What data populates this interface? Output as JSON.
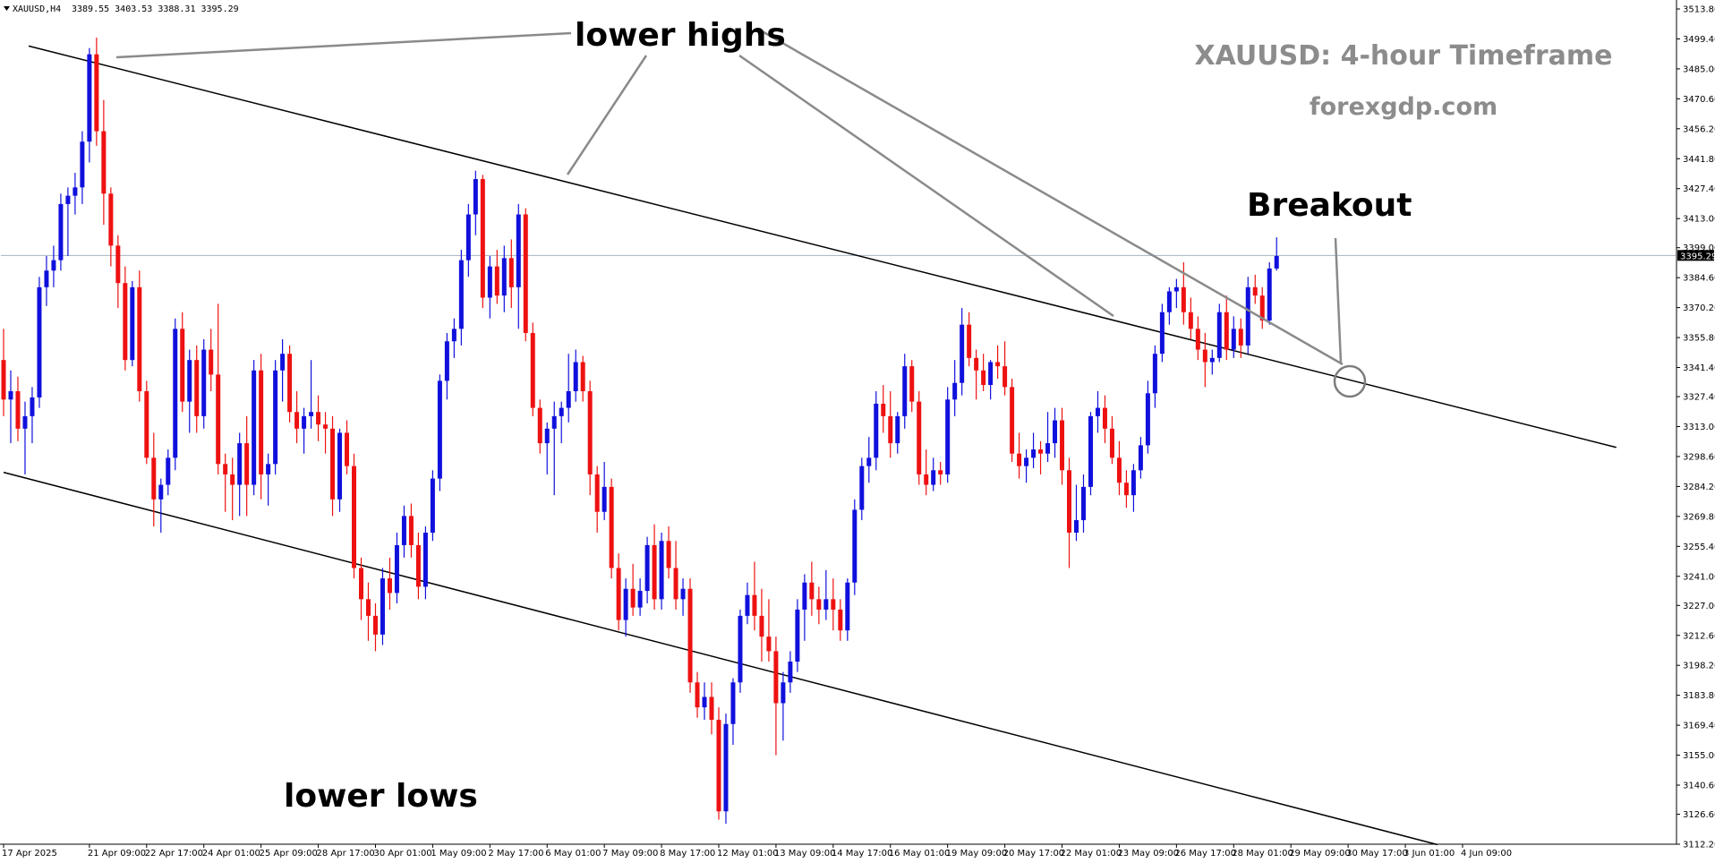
{
  "symbol_info": {
    "symbol": "XAUUSD,H4",
    "ohlc": "3389.55 3403.53 3388.31 3395.29"
  },
  "watermark": {
    "title": "XAUUSD: 4-hour Timeframe",
    "site": "forexgdp.com"
  },
  "annotations": {
    "lower_highs": "lower highs",
    "lower_lows": "lower lows",
    "breakout": "Breakout"
  },
  "colors": {
    "bull": "#1010dd",
    "bear": "#ee1111",
    "trendline": "#000000",
    "pointer": "#8a8a8a",
    "price_line": "#a6b3c2"
  },
  "chart_data": {
    "type": "candlestick",
    "title": "XAUUSD: 4-hour Timeframe",
    "symbol": "XAUUSD,H4",
    "timeframe": "H4",
    "current_price": 3395.29,
    "current_price_label": "3395.29",
    "ylim": [
      3112.2,
      3513.8
    ],
    "y_ticks": [
      "3513.80",
      "3499.40",
      "3485.00",
      "3470.60",
      "3456.20",
      "3441.80",
      "3427.40",
      "3413.00",
      "3399.00",
      "3384.60",
      "3370.20",
      "3355.80",
      "3341.40",
      "3327.40",
      "3313.00",
      "3298.60",
      "3284.20",
      "3269.80",
      "3255.40",
      "3241.00",
      "3227.00",
      "3212.60",
      "3198.20",
      "3183.80",
      "3169.40",
      "3155.00",
      "3140.60",
      "3126.60",
      "3112.20"
    ],
    "x_ticks": [
      {
        "label": "17 Apr 2025",
        "bar": 0
      },
      {
        "label": "21 Apr 09:00",
        "bar": 12
      },
      {
        "label": "22 Apr 17:00",
        "bar": 20
      },
      {
        "label": "24 Apr 01:00",
        "bar": 28
      },
      {
        "label": "25 Apr 09:00",
        "bar": 36
      },
      {
        "label": "28 Apr 17:00",
        "bar": 44
      },
      {
        "label": "30 Apr 01:00",
        "bar": 52
      },
      {
        "label": "1 May 09:00",
        "bar": 60
      },
      {
        "label": "2 May 17:00",
        "bar": 68
      },
      {
        "label": "6 May 01:00",
        "bar": 76
      },
      {
        "label": "7 May 09:00",
        "bar": 84
      },
      {
        "label": "8 May 17:00",
        "bar": 92
      },
      {
        "label": "12 May 01:00",
        "bar": 100
      },
      {
        "label": "13 May 09:00",
        "bar": 108
      },
      {
        "label": "14 May 17:00",
        "bar": 116
      },
      {
        "label": "16 May 01:00",
        "bar": 124
      },
      {
        "label": "19 May 09:00",
        "bar": 132
      },
      {
        "label": "20 May 17:00",
        "bar": 140
      },
      {
        "label": "22 May 01:00",
        "bar": 148
      },
      {
        "label": "23 May 09:00",
        "bar": 156
      },
      {
        "label": "26 May 17:00",
        "bar": 164
      },
      {
        "label": "28 May 01:00",
        "bar": 172
      },
      {
        "label": "29 May 09:00",
        "bar": 180
      },
      {
        "label": "30 May 17:00",
        "bar": 188
      },
      {
        "label": "3 Jun 01:00",
        "bar": 196
      },
      {
        "label": "4 Jun 09:00",
        "bar": 204
      }
    ],
    "trendlines": [
      {
        "name": "upper",
        "bar0": 3.5,
        "price0": 3496,
        "bar1": 225.5,
        "price1": 3303
      },
      {
        "name": "lower",
        "bar0": 0,
        "price0": 3291,
        "bar1": 200.5,
        "price1": 3112
      }
    ],
    "candles": [
      [
        3345,
        3360,
        3318,
        3326
      ],
      [
        3326,
        3340,
        3305,
        3330
      ],
      [
        3330,
        3337,
        3306,
        3312
      ],
      [
        3312,
        3325,
        3290,
        3318
      ],
      [
        3318,
        3332,
        3305,
        3327
      ],
      [
        3327,
        3385,
        3322,
        3380
      ],
      [
        3380,
        3395,
        3371,
        3388
      ],
      [
        3388,
        3400,
        3380,
        3393
      ],
      [
        3393,
        3425,
        3388,
        3420
      ],
      [
        3420,
        3428,
        3395,
        3424
      ],
      [
        3424,
        3435,
        3415,
        3428
      ],
      [
        3428,
        3455,
        3420,
        3450
      ],
      [
        3450,
        3495,
        3440,
        3492
      ],
      [
        3492,
        3500,
        3448,
        3455
      ],
      [
        3455,
        3470,
        3410,
        3425
      ],
      [
        3425,
        3428,
        3390,
        3400
      ],
      [
        3400,
        3405,
        3370,
        3382
      ],
      [
        3382,
        3390,
        3340,
        3345
      ],
      [
        3345,
        3383,
        3342,
        3380
      ],
      [
        3380,
        3388,
        3325,
        3330
      ],
      [
        3330,
        3335,
        3295,
        3298
      ],
      [
        3298,
        3310,
        3265,
        3278
      ],
      [
        3278,
        3288,
        3262,
        3285
      ],
      [
        3285,
        3302,
        3280,
        3298
      ],
      [
        3298,
        3365,
        3292,
        3360
      ],
      [
        3360,
        3368,
        3320,
        3325
      ],
      [
        3325,
        3350,
        3310,
        3345
      ],
      [
        3345,
        3352,
        3310,
        3318
      ],
      [
        3318,
        3355,
        3312,
        3350
      ],
      [
        3350,
        3360,
        3330,
        3338
      ],
      [
        3338,
        3372,
        3290,
        3295
      ],
      [
        3295,
        3300,
        3272,
        3290
      ],
      [
        3290,
        3298,
        3268,
        3285
      ],
      [
        3285,
        3310,
        3270,
        3305
      ],
      [
        3305,
        3318,
        3270,
        3285
      ],
      [
        3285,
        3345,
        3280,
        3340
      ],
      [
        3340,
        3348,
        3278,
        3290
      ],
      [
        3290,
        3300,
        3275,
        3295
      ],
      [
        3295,
        3345,
        3290,
        3340
      ],
      [
        3340,
        3355,
        3325,
        3348
      ],
      [
        3348,
        3352,
        3315,
        3320
      ],
      [
        3320,
        3330,
        3305,
        3312
      ],
      [
        3312,
        3322,
        3300,
        3318
      ],
      [
        3318,
        3345,
        3312,
        3320
      ],
      [
        3320,
        3328,
        3306,
        3314
      ],
      [
        3314,
        3320,
        3300,
        3312
      ],
      [
        3312,
        3318,
        3270,
        3278
      ],
      [
        3278,
        3312,
        3272,
        3310
      ],
      [
        3310,
        3316,
        3290,
        3294
      ],
      [
        3294,
        3300,
        3240,
        3245
      ],
      [
        3245,
        3250,
        3220,
        3230
      ],
      [
        3230,
        3238,
        3210,
        3222
      ],
      [
        3222,
        3228,
        3205,
        3213
      ],
      [
        3213,
        3245,
        3208,
        3240
      ],
      [
        3240,
        3250,
        3225,
        3233
      ],
      [
        3233,
        3262,
        3228,
        3256
      ],
      [
        3256,
        3275,
        3250,
        3270
      ],
      [
        3270,
        3276,
        3250,
        3256
      ],
      [
        3256,
        3262,
        3230,
        3236
      ],
      [
        3236,
        3265,
        3230,
        3262
      ],
      [
        3262,
        3292,
        3258,
        3288
      ],
      [
        3288,
        3338,
        3282,
        3335
      ],
      [
        3335,
        3358,
        3326,
        3354
      ],
      [
        3354,
        3365,
        3346,
        3360
      ],
      [
        3360,
        3398,
        3352,
        3393
      ],
      [
        3393,
        3420,
        3385,
        3415
      ],
      [
        3415,
        3436,
        3405,
        3432
      ],
      [
        3432,
        3434,
        3370,
        3375
      ],
      [
        3375,
        3395,
        3365,
        3390
      ],
      [
        3390,
        3398,
        3372,
        3376
      ],
      [
        3376,
        3400,
        3368,
        3394
      ],
      [
        3394,
        3403,
        3370,
        3380
      ],
      [
        3380,
        3420,
        3360,
        3415
      ],
      [
        3415,
        3418,
        3354,
        3358
      ],
      [
        3358,
        3363,
        3318,
        3322
      ],
      [
        3322,
        3326,
        3300,
        3305
      ],
      [
        3305,
        3315,
        3290,
        3312
      ],
      [
        3312,
        3325,
        3280,
        3318
      ],
      [
        3318,
        3325,
        3305,
        3322
      ],
      [
        3322,
        3348,
        3315,
        3330
      ],
      [
        3330,
        3350,
        3325,
        3344
      ],
      [
        3344,
        3347,
        3325,
        3330
      ],
      [
        3330,
        3335,
        3280,
        3290
      ],
      [
        3290,
        3294,
        3262,
        3272
      ],
      [
        3272,
        3296,
        3268,
        3284
      ],
      [
        3284,
        3288,
        3240,
        3245
      ],
      [
        3245,
        3252,
        3215,
        3220
      ],
      [
        3220,
        3240,
        3212,
        3235
      ],
      [
        3235,
        3247,
        3222,
        3226
      ],
      [
        3226,
        3240,
        3222,
        3234
      ],
      [
        3234,
        3260,
        3228,
        3256
      ],
      [
        3256,
        3266,
        3225,
        3230
      ],
      [
        3230,
        3262,
        3225,
        3258
      ],
      [
        3258,
        3265,
        3240,
        3245
      ],
      [
        3245,
        3258,
        3225,
        3230
      ],
      [
        3230,
        3240,
        3222,
        3235
      ],
      [
        3235,
        3240,
        3185,
        3190
      ],
      [
        3190,
        3195,
        3173,
        3178
      ],
      [
        3178,
        3190,
        3172,
        3183
      ],
      [
        3183,
        3190,
        3165,
        3172
      ],
      [
        3172,
        3178,
        3124,
        3128
      ],
      [
        3128,
        3175,
        3122,
        3170
      ],
      [
        3170,
        3192,
        3160,
        3190
      ],
      [
        3190,
        3225,
        3185,
        3222
      ],
      [
        3222,
        3238,
        3218,
        3232
      ],
      [
        3232,
        3248,
        3215,
        3222
      ],
      [
        3222,
        3235,
        3200,
        3212
      ],
      [
        3212,
        3230,
        3200,
        3205
      ],
      [
        3205,
        3212,
        3155,
        3180
      ],
      [
        3180,
        3195,
        3162,
        3190
      ],
      [
        3190,
        3205,
        3185,
        3200
      ],
      [
        3200,
        3230,
        3195,
        3225
      ],
      [
        3225,
        3242,
        3210,
        3238
      ],
      [
        3238,
        3248,
        3222,
        3230
      ],
      [
        3230,
        3236,
        3218,
        3225
      ],
      [
        3225,
        3244,
        3220,
        3230
      ],
      [
        3230,
        3240,
        3215,
        3225
      ],
      [
        3225,
        3230,
        3210,
        3215
      ],
      [
        3215,
        3240,
        3210,
        3238
      ],
      [
        3238,
        3278,
        3232,
        3273
      ],
      [
        3273,
        3298,
        3268,
        3294
      ],
      [
        3294,
        3308,
        3286,
        3298
      ],
      [
        3298,
        3330,
        3292,
        3324
      ],
      [
        3324,
        3333,
        3310,
        3318
      ],
      [
        3318,
        3330,
        3298,
        3305
      ],
      [
        3305,
        3320,
        3300,
        3318
      ],
      [
        3318,
        3348,
        3312,
        3342
      ],
      [
        3342,
        3345,
        3320,
        3325
      ],
      [
        3325,
        3330,
        3285,
        3290
      ],
      [
        3290,
        3302,
        3280,
        3285
      ],
      [
        3285,
        3298,
        3282,
        3292
      ],
      [
        3292,
        3296,
        3285,
        3290
      ],
      [
        3290,
        3332,
        3286,
        3326
      ],
      [
        3326,
        3345,
        3318,
        3334
      ],
      [
        3334,
        3370,
        3328,
        3362
      ],
      [
        3362,
        3368,
        3342,
        3346
      ],
      [
        3346,
        3350,
        3326,
        3340
      ],
      [
        3340,
        3348,
        3330,
        3333
      ],
      [
        3333,
        3345,
        3326,
        3344
      ],
      [
        3344,
        3352,
        3336,
        3342
      ],
      [
        3342,
        3354,
        3328,
        3332
      ],
      [
        3332,
        3336,
        3296,
        3300
      ],
      [
        3300,
        3310,
        3288,
        3294
      ],
      [
        3294,
        3302,
        3286,
        3298
      ],
      [
        3298,
        3310,
        3293,
        3302
      ],
      [
        3302,
        3306,
        3290,
        3300
      ],
      [
        3300,
        3320,
        3296,
        3305
      ],
      [
        3305,
        3322,
        3298,
        3316
      ],
      [
        3316,
        3322,
        3285,
        3292
      ],
      [
        3292,
        3298,
        3245,
        3262
      ],
      [
        3262,
        3285,
        3258,
        3268
      ],
      [
        3268,
        3290,
        3262,
        3284
      ],
      [
        3284,
        3320,
        3280,
        3318
      ],
      [
        3318,
        3330,
        3310,
        3322
      ],
      [
        3322,
        3328,
        3305,
        3312
      ],
      [
        3312,
        3318,
        3295,
        3298
      ],
      [
        3298,
        3306,
        3280,
        3286
      ],
      [
        3286,
        3292,
        3274,
        3280
      ],
      [
        3280,
        3295,
        3272,
        3292
      ],
      [
        3292,
        3308,
        3288,
        3304
      ],
      [
        3304,
        3335,
        3300,
        3329
      ],
      [
        3329,
        3352,
        3322,
        3348
      ],
      [
        3348,
        3372,
        3344,
        3368
      ],
      [
        3368,
        3380,
        3362,
        3378
      ],
      [
        3378,
        3384,
        3370,
        3380
      ],
      [
        3380,
        3392,
        3362,
        3368
      ],
      [
        3368,
        3375,
        3355,
        3360
      ],
      [
        3360,
        3366,
        3345,
        3350
      ],
      [
        3350,
        3358,
        3332,
        3344
      ],
      [
        3344,
        3350,
        3338,
        3346
      ],
      [
        3346,
        3372,
        3344,
        3368
      ],
      [
        3368,
        3376,
        3345,
        3350
      ],
      [
        3350,
        3366,
        3346,
        3360
      ],
      [
        3360,
        3365,
        3346,
        3352
      ],
      [
        3352,
        3385,
        3348,
        3380
      ],
      [
        3380,
        3386,
        3372,
        3376
      ],
      [
        3376,
        3380,
        3360,
        3364
      ],
      [
        3364,
        3392,
        3362,
        3389
      ],
      [
        3389,
        3404,
        3388,
        3395
      ]
    ]
  }
}
